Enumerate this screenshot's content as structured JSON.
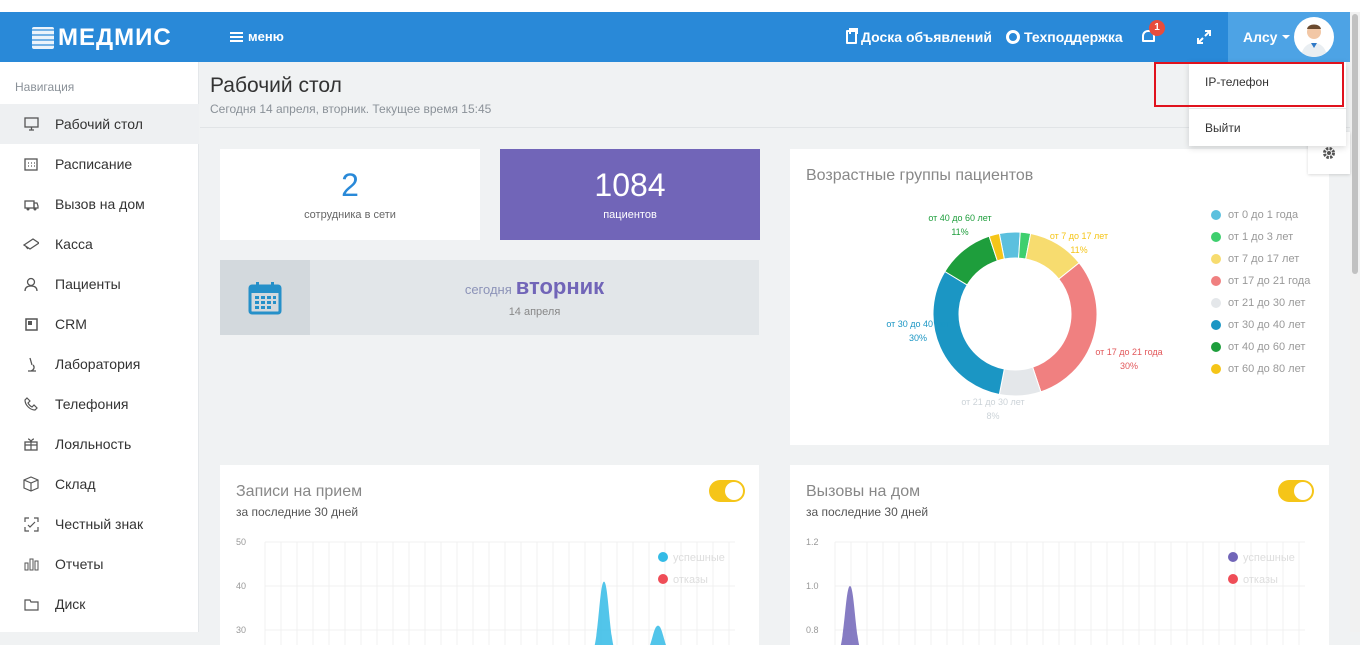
{
  "app": {
    "logo": "МЕДМИС",
    "menu_label": "меню"
  },
  "topbar": {
    "board_label": "Доска объявлений",
    "support_label": "Техподдержка",
    "notification_count": "1",
    "user_name": "Алсу"
  },
  "dropdown": {
    "items": [
      "IP-телефон",
      "Выйти"
    ]
  },
  "sidebar": {
    "title": "Навигация",
    "items": [
      {
        "label": "Рабочий стол",
        "icon": "monitor-icon"
      },
      {
        "label": "Расписание",
        "icon": "calendar-icon"
      },
      {
        "label": "Вызов на дом",
        "icon": "ambulance-icon"
      },
      {
        "label": "Касса",
        "icon": "cash-icon"
      },
      {
        "label": "Пациенты",
        "icon": "users-icon"
      },
      {
        "label": "CRM",
        "icon": "crm-icon"
      },
      {
        "label": "Лаборатория",
        "icon": "microscope-icon"
      },
      {
        "label": "Телефония",
        "icon": "phone-icon"
      },
      {
        "label": "Лояльность",
        "icon": "gift-icon"
      },
      {
        "label": "Склад",
        "icon": "box-icon"
      },
      {
        "label": "Честный знак",
        "icon": "scan-icon"
      },
      {
        "label": "Отчеты",
        "icon": "bar-chart-icon"
      },
      {
        "label": "Диск",
        "icon": "folder-icon"
      }
    ]
  },
  "page": {
    "title": "Рабочий стол",
    "subtitle": "Сегодня 14 апреля, вторник. Текущее время 15:45"
  },
  "stats": {
    "staff_online": "2",
    "staff_online_label": "сотрудника в сети",
    "patients": "1084",
    "patients_label": "пациентов"
  },
  "today": {
    "prefix": "сегодня",
    "weekday": "вторник",
    "date": "14 апреля"
  },
  "age_groups": {
    "title": "Возрастные группы пациентов",
    "chart_data": {
      "type": "pie",
      "donut": true,
      "categories": [
        "от 0 до 1 года",
        "от 1 до 3 лет",
        "от 7 до 17 лет",
        "от 17 до 21 года",
        "от 21 до 30 лет",
        "от 30 до 40 лет",
        "от 40 до 60 лет",
        "от 60 до 80 лет"
      ],
      "values": [
        4,
        2,
        11,
        30,
        8,
        30,
        11,
        2
      ],
      "colors": [
        "#5bc0de",
        "#3ecf6e",
        "#f7dc6f",
        "#f08080",
        "#e4e7ea",
        "#1b96c4",
        "#1e9e3c",
        "#f5c518"
      ],
      "callouts": [
        {
          "label": "от 40 до 60 лет",
          "value": "11%",
          "color": "#1e9e3c"
        },
        {
          "label": "от 7 до 17 лет",
          "value": "11%",
          "color": "#f5c518"
        },
        {
          "label": "от 30 до 40 лет",
          "value": "30%",
          "color": "#1b96c4"
        },
        {
          "label": "от 17 до 21 года",
          "value": "30%",
          "color": "#e2575a"
        },
        {
          "label": "от 21 до 30 лет",
          "value": "8%",
          "color": "#ccd3d8"
        }
      ],
      "legend_position": "right"
    }
  },
  "appointments": {
    "title": "Записи на прием",
    "subtitle": "за последние 30 дней",
    "chart_data": {
      "type": "area",
      "ylim": [
        30,
        50
      ],
      "yticks": [
        "50",
        "40",
        "30"
      ],
      "series": [
        {
          "name": "успешные",
          "color": "#34bbe6"
        },
        {
          "name": "отказы",
          "color": "#ef4d57"
        }
      ],
      "peaks": [
        41,
        31
      ]
    }
  },
  "home_calls": {
    "title": "Вызовы на дом",
    "subtitle": "за последние 30 дней",
    "chart_data": {
      "type": "area",
      "ylim": [
        0.8,
        1.2
      ],
      "yticks": [
        "1.2",
        "1.0",
        "0.8"
      ],
      "series": [
        {
          "name": "успешные",
          "color": "#7165b8"
        },
        {
          "name": "отказы",
          "color": "#ef4d57"
        }
      ],
      "peaks": [
        1.0
      ]
    }
  }
}
